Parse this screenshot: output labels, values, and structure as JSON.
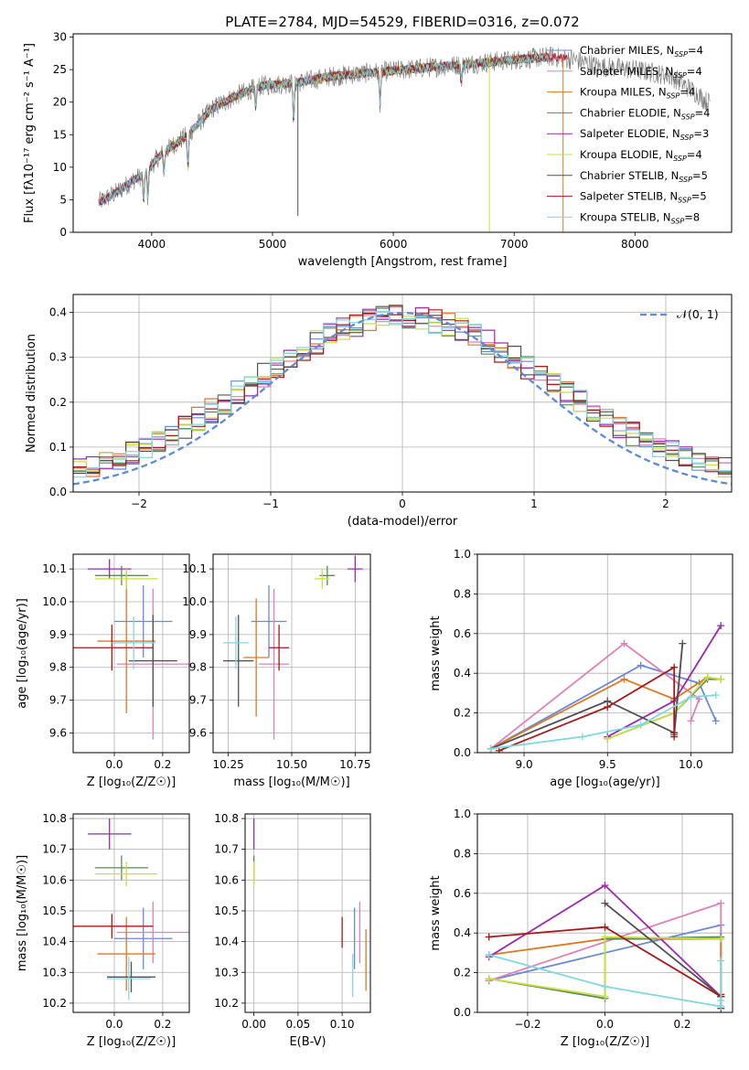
{
  "figure": {
    "title": "PLATE=2784, MJD=54529, FIBERID=0316, z=0.072"
  },
  "models": [
    {
      "label": "Chabrier MILES, N",
      "nssp": "4",
      "color": "#6a8ad8"
    },
    {
      "label": "Salpeter MILES, N",
      "nssp": "4",
      "color": "#e080b8"
    },
    {
      "label": "Kroupa MILES, N",
      "nssp": "4",
      "color": "#e07820"
    },
    {
      "label": "Chabrier ELODIE, N",
      "nssp": "4",
      "color": "#5a8a5a"
    },
    {
      "label": "Salpeter ELODIE, N",
      "nssp": "3",
      "color": "#9a2ab0"
    },
    {
      "label": "Kroupa ELODIE, N",
      "nssp": "4",
      "color": "#c8e040"
    },
    {
      "label": "Chabrier STELIB, N",
      "nssp": "5",
      "color": "#505050"
    },
    {
      "label": "Salpeter STELIB, N",
      "nssp": "5",
      "color": "#a81818"
    },
    {
      "label": "Kroupa STELIB, N",
      "nssp": "8",
      "color": "#80d8e0"
    }
  ],
  "legend_sub": "SSP",
  "chart_data": [
    {
      "id": "spectrum",
      "type": "line",
      "xlabel": "wavelength [Angstrom, rest frame]",
      "ylabel": "Flux [fλ10⁻¹⁷ erg cm⁻² s⁻¹ A⁻¹]",
      "xlim": [
        3350,
        8800
      ],
      "ylim": [
        0,
        30.5
      ],
      "xticks": [
        4000,
        5000,
        6000,
        7000,
        8000
      ],
      "yticks": [
        0,
        5,
        10,
        15,
        20,
        25,
        30
      ],
      "continuum": [
        [
          3550,
          4.5
        ],
        [
          3700,
          6
        ],
        [
          3850,
          8
        ],
        [
          3950,
          9
        ],
        [
          4050,
          11.5
        ],
        [
          4150,
          13
        ],
        [
          4300,
          15
        ],
        [
          4500,
          19
        ],
        [
          4700,
          21
        ],
        [
          4900,
          22.5
        ],
        [
          5200,
          23
        ],
        [
          5500,
          24
        ],
        [
          5800,
          24.5
        ],
        [
          6100,
          25
        ],
        [
          6400,
          25.5
        ],
        [
          6700,
          26
        ],
        [
          7000,
          26.5
        ],
        [
          7300,
          27
        ],
        [
          7500,
          26.5
        ],
        [
          7700,
          25.5
        ],
        [
          8000,
          25
        ],
        [
          8300,
          24
        ],
        [
          8500,
          21.5
        ],
        [
          8600,
          20
        ]
      ],
      "legend_position": "upper right"
    },
    {
      "id": "residuals",
      "type": "line",
      "xlabel": "(data-model)/error",
      "ylabel": "Normed distribution",
      "xlim": [
        -2.5,
        2.5
      ],
      "ylim": [
        0,
        0.44
      ],
      "xticks": [
        -2,
        -1,
        0,
        1,
        2
      ],
      "yticks": [
        0.0,
        0.1,
        0.2,
        0.3,
        0.4
      ],
      "gaussian": {
        "name": "𝒩(0, 1)",
        "mean": 0,
        "sigma": 1
      },
      "bin_width": 0.1,
      "grid": true
    },
    {
      "id": "age_vs_Z",
      "type": "scatter",
      "xlabel": "Z [log₁₀(Z/Z☉)]",
      "ylabel": "age [log₁₀(age/yr)]",
      "xlim": [
        -0.17,
        0.31
      ],
      "ylim": [
        9.54,
        10.145
      ],
      "xticks": [
        0.0,
        0.2
      ],
      "yticks": [
        9.6,
        9.7,
        9.8,
        9.9,
        10.0,
        10.1
      ],
      "points": [
        {
          "x": 0.12,
          "y": 9.94,
          "xerr": 0.12,
          "yerr": 0.11
        },
        {
          "x": 0.16,
          "y": 9.81,
          "xerr": 0.15,
          "yerr": 0.23
        },
        {
          "x": 0.05,
          "y": 9.88,
          "xerr": 0.12,
          "yerr": 0.22
        },
        {
          "x": 0.03,
          "y": 10.08,
          "xerr": 0.11,
          "yerr": 0.03
        },
        {
          "x": -0.02,
          "y": 10.1,
          "xerr": 0.09,
          "yerr": 0.03
        },
        {
          "x": 0.05,
          "y": 10.07,
          "xerr": 0.13,
          "yerr": 0.03
        },
        {
          "x": 0.16,
          "y": 9.82,
          "xerr": 0.1,
          "yerr": 0.14
        },
        {
          "x": -0.01,
          "y": 9.86,
          "xerr": 0.17,
          "yerr": 0.07
        },
        {
          "x": 0.08,
          "y": 9.875,
          "xerr": 0.09,
          "yerr": 0.08
        }
      ]
    },
    {
      "id": "age_vs_mass",
      "type": "scatter",
      "xlabel": "mass [log₁₀(M/M☉)]",
      "ylabel": "",
      "xlim": [
        10.19,
        10.81
      ],
      "ylim": [
        9.54,
        10.145
      ],
      "xticks": [
        10.25,
        10.5,
        10.75
      ],
      "yticks": [
        9.6,
        9.7,
        9.8,
        9.9,
        10.0,
        10.1
      ],
      "points": [
        {
          "x": 10.41,
          "y": 9.94,
          "xerr": 0.07,
          "yerr": 0.11
        },
        {
          "x": 10.43,
          "y": 9.81,
          "xerr": 0.06,
          "yerr": 0.23
        },
        {
          "x": 10.36,
          "y": 9.83,
          "xerr": 0.05,
          "yerr": 0.18
        },
        {
          "x": 10.64,
          "y": 10.08,
          "xerr": 0.03,
          "yerr": 0.03
        },
        {
          "x": 10.75,
          "y": 10.1,
          "xerr": 0.03,
          "yerr": 0.04
        },
        {
          "x": 10.62,
          "y": 10.07,
          "xerr": 0.03,
          "yerr": 0.03
        },
        {
          "x": 10.29,
          "y": 9.82,
          "xerr": 0.06,
          "yerr": 0.14
        },
        {
          "x": 10.45,
          "y": 9.86,
          "xerr": 0.04,
          "yerr": 0.07
        },
        {
          "x": 10.28,
          "y": 9.875,
          "xerr": 0.05,
          "yerr": 0.08
        }
      ]
    },
    {
      "id": "weight_vs_age",
      "type": "line",
      "xlabel": "age [log₁₀(age/yr)]",
      "ylabel": "mass weight",
      "xlim": [
        8.72,
        10.25
      ],
      "ylim": [
        0,
        1.0
      ],
      "xticks": [
        9.0,
        9.5,
        10.0
      ],
      "yticks": [
        0.0,
        0.2,
        0.4,
        0.6,
        0.8,
        1.0
      ],
      "series": [
        {
          "x": [
            8.8,
            9.7,
            10.05,
            10.15
          ],
          "y": [
            0.02,
            0.44,
            0.35,
            0.16
          ]
        },
        {
          "x": [
            8.8,
            9.6,
            10.05,
            10.0
          ],
          "y": [
            0.02,
            0.55,
            0.27,
            0.16
          ]
        },
        {
          "x": [
            8.8,
            9.6,
            9.9,
            10.1
          ],
          "y": [
            0.02,
            0.37,
            0.27,
            0.38
          ]
        },
        {
          "x": [
            9.5,
            9.9,
            10.1,
            10.18
          ],
          "y": [
            0.07,
            0.2,
            0.37,
            0.37
          ]
        },
        {
          "x": [
            9.5,
            9.9,
            10.18
          ],
          "y": [
            0.08,
            0.26,
            0.64
          ]
        },
        {
          "x": [
            9.5,
            9.9,
            10.1,
            10.18
          ],
          "y": [
            0.07,
            0.2,
            0.38,
            0.37
          ]
        },
        {
          "x": [
            8.8,
            9.5,
            9.9,
            9.95,
            9.9
          ],
          "y": [
            0.02,
            0.26,
            0.1,
            0.55,
            0.09
          ]
        },
        {
          "x": [
            8.85,
            9.5,
            9.9,
            9.9,
            9.9
          ],
          "y": [
            0.01,
            0.23,
            0.43,
            0.08,
            0.1
          ]
        },
        {
          "x": [
            8.8,
            9.35,
            9.7,
            10.0,
            10.15
          ],
          "y": [
            0.02,
            0.08,
            0.14,
            0.28,
            0.29
          ]
        }
      ]
    },
    {
      "id": "mass_vs_Z",
      "type": "scatter",
      "xlabel": "Z [log₁₀(Z/Z☉)]",
      "ylabel": "mass [log₁₀(M/M☉)]",
      "xlim": [
        -0.17,
        0.31
      ],
      "ylim": [
        10.17,
        10.815
      ],
      "xticks": [
        0.0,
        0.2
      ],
      "yticks": [
        10.2,
        10.3,
        10.4,
        10.5,
        10.6,
        10.7,
        10.8
      ],
      "points": [
        {
          "x": 0.12,
          "y": 10.41,
          "xerr": 0.12,
          "yerr": 0.1
        },
        {
          "x": 0.16,
          "y": 10.43,
          "xerr": 0.15,
          "yerr": 0.1
        },
        {
          "x": 0.05,
          "y": 10.36,
          "xerr": 0.12,
          "yerr": 0.12
        },
        {
          "x": 0.03,
          "y": 10.64,
          "xerr": 0.11,
          "yerr": 0.04
        },
        {
          "x": -0.02,
          "y": 10.75,
          "xerr": 0.09,
          "yerr": 0.05
        },
        {
          "x": 0.05,
          "y": 10.62,
          "xerr": 0.13,
          "yerr": 0.04
        },
        {
          "x": 0.07,
          "y": 10.285,
          "xerr": 0.1,
          "yerr": 0.05
        },
        {
          "x": -0.01,
          "y": 10.45,
          "xerr": 0.17,
          "yerr": 0.04
        },
        {
          "x": 0.06,
          "y": 10.28,
          "xerr": 0.09,
          "yerr": 0.07
        }
      ]
    },
    {
      "id": "mass_vs_ebv",
      "type": "scatter",
      "xlabel": "E(B-V)",
      "ylabel": "",
      "xlim": [
        -0.01,
        0.132
      ],
      "ylim": [
        10.17,
        10.815
      ],
      "xticks": [
        0.0,
        0.05,
        0.1
      ],
      "yticks": [
        10.2,
        10.3,
        10.4,
        10.5,
        10.6,
        10.7,
        10.8
      ],
      "points": [
        {
          "x": 0.114,
          "y": 10.41,
          "xerr": 0,
          "yerr": 0.1
        },
        {
          "x": 0.12,
          "y": 10.43,
          "xerr": 0,
          "yerr": 0.1
        },
        {
          "x": 0.127,
          "y": 10.34,
          "xerr": 0,
          "yerr": 0.1
        },
        {
          "x": 0.0,
          "y": 10.64,
          "xerr": 0,
          "yerr": 0.04
        },
        {
          "x": 0.0,
          "y": 10.75,
          "xerr": 0,
          "yerr": 0.05
        },
        {
          "x": 0.0,
          "y": 10.62,
          "xerr": 0,
          "yerr": 0.04
        },
        {
          "x": 0.0,
          "y": 10.285,
          "xerr": 0,
          "yerr": 0.0
        },
        {
          "x": 0.1,
          "y": 10.43,
          "xerr": 0,
          "yerr": 0.05
        },
        {
          "x": 0.112,
          "y": 10.29,
          "xerr": 0,
          "yerr": 0.07
        }
      ]
    },
    {
      "id": "weight_vs_Z",
      "type": "line",
      "xlabel": "Z [log₁₀(Z/Z☉)]",
      "ylabel": "mass weight",
      "xlim": [
        -0.33,
        0.33
      ],
      "ylim": [
        0,
        1.0
      ],
      "xticks": [
        -0.2,
        0.0,
        0.2
      ],
      "yticks": [
        0.0,
        0.2,
        0.4,
        0.6,
        0.8,
        1.0
      ],
      "series": [
        {
          "x": [
            -0.3,
            0.3,
            0.3,
            0.3
          ],
          "y": [
            0.16,
            0.44,
            0.08,
            0.03
          ]
        },
        {
          "x": [
            -0.3,
            0.3,
            0.3,
            0.3
          ],
          "y": [
            0.16,
            0.55,
            0.08,
            0.03
          ]
        },
        {
          "x": [
            -0.3,
            0.0,
            0.3,
            0.3
          ],
          "y": [
            0.29,
            0.37,
            0.37,
            0.09
          ]
        },
        {
          "x": [
            -0.3,
            0.0,
            0.0,
            0.3
          ],
          "y": [
            0.17,
            0.07,
            0.37,
            0.38
          ]
        },
        {
          "x": [
            -0.3,
            0.0,
            0.3
          ],
          "y": [
            0.28,
            0.64,
            0.08
          ]
        },
        {
          "x": [
            -0.3,
            0.0,
            0.0,
            0.3
          ],
          "y": [
            0.17,
            0.08,
            0.38,
            0.37
          ]
        },
        {
          "x": [
            0.0,
            0.3,
            0.3
          ],
          "y": [
            0.55,
            0.08,
            0.02
          ]
        },
        {
          "x": [
            -0.3,
            0.0,
            0.3,
            0.3
          ],
          "y": [
            0.38,
            0.43,
            0.08,
            0.09
          ]
        },
        {
          "x": [
            -0.3,
            0.0,
            0.3,
            0.3,
            0.3
          ],
          "y": [
            0.29,
            0.13,
            0.03,
            0.26,
            0.06
          ]
        }
      ]
    }
  ]
}
